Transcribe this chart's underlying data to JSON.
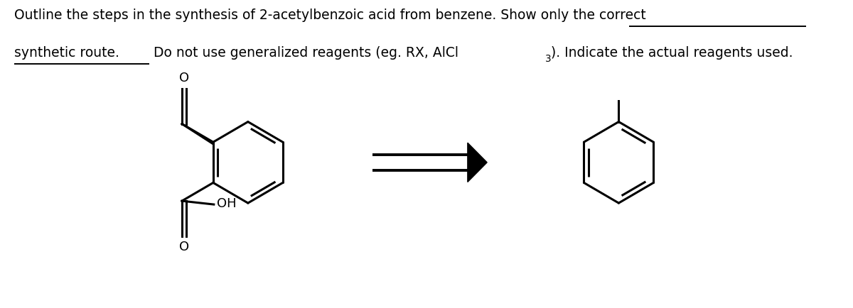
{
  "bg_color": "#ffffff",
  "fig_width": 12.0,
  "fig_height": 4.34,
  "dpi": 100,
  "font_family": "DejaVu Sans",
  "font_size": 13.5,
  "line1_text": "Outline the steps in the synthesis of 2-acetylbenzoic acid from benzene. Show only the correct",
  "line1_prefix": "Outline the steps in the synthesis of 2-acetylbenzoic acid from benzene. ",
  "line1_underlined": "Show only the correct",
  "line2_prefix_underlined": "synthetic route.",
  "line2_suffix": " Do not use generalized reagents (eg. RX, AlCl",
  "line2_subscript": "3",
  "line2_end": "). Indicate the actual reagents used.",
  "lw_struct": 2.2,
  "lw_arrow": 2.8
}
